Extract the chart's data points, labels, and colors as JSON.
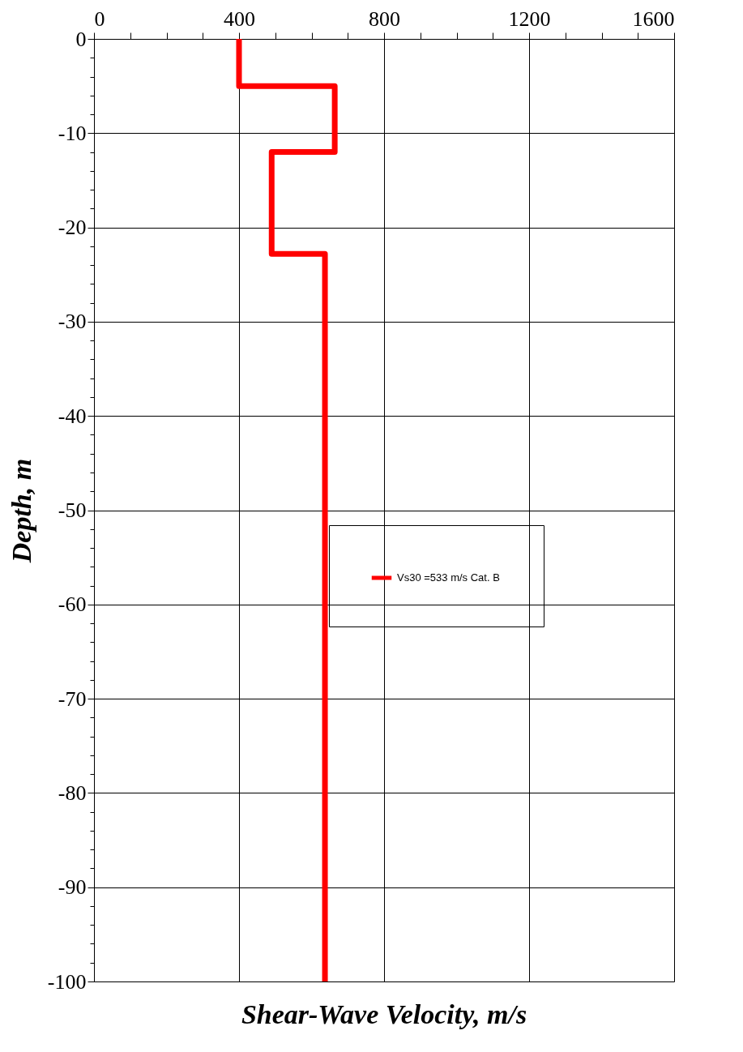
{
  "chart_data": {
    "type": "line",
    "xlabel": "Shear-Wave Velocity, m/s",
    "ylabel": "Depth, m",
    "x": [
      400,
      400,
      664,
      664,
      490,
      490,
      637,
      637
    ],
    "series": [
      {
        "name": "Vs30 =533  m/s Cat. B",
        "color": "#ff0000",
        "values": [
          0,
          -5,
          -5,
          -12,
          -12,
          -22.8,
          -22.8,
          -100
        ]
      }
    ],
    "xlim": [
      0,
      1600
    ],
    "xticks": [
      0,
      {
        "value": 100,
        "label": null
      },
      {
        "value": 200,
        "label": null
      },
      {
        "value": 300,
        "label": null
      },
      400,
      {
        "value": 500,
        "label": null
      },
      {
        "value": 600,
        "label": null
      },
      {
        "value": 700,
        "label": null
      },
      800,
      {
        "value": 900,
        "label": null
      },
      {
        "value": 1000,
        "label": null
      },
      {
        "value": 1100,
        "label": null
      },
      1200,
      {
        "value": 1300,
        "label": null
      },
      {
        "value": 1400,
        "label": null
      },
      {
        "value": 1500,
        "label": null
      },
      1600
    ],
    "ylim": [
      -100,
      0
    ],
    "yticks": [
      0,
      {
        "value": -2,
        "label": null
      },
      {
        "value": -4,
        "label": null
      },
      {
        "value": -6,
        "label": null
      },
      {
        "value": -8,
        "label": null
      },
      -10,
      {
        "value": -12,
        "label": null
      },
      {
        "value": -14,
        "label": null
      },
      {
        "value": -16,
        "label": null
      },
      {
        "value": -18,
        "label": null
      },
      -20,
      {
        "value": -22,
        "label": null
      },
      {
        "value": -24,
        "label": null
      },
      {
        "value": -26,
        "label": null
      },
      {
        "value": -28,
        "label": null
      },
      -30,
      {
        "value": -32,
        "label": null
      },
      {
        "value": -34,
        "label": null
      },
      {
        "value": -36,
        "label": null
      },
      {
        "value": -38,
        "label": null
      },
      -40,
      {
        "value": -42,
        "label": null
      },
      {
        "value": -44,
        "label": null
      },
      {
        "value": -46,
        "label": null
      },
      {
        "value": -48,
        "label": null
      },
      -50,
      {
        "value": -52,
        "label": null
      },
      {
        "value": -54,
        "label": null
      },
      {
        "value": -56,
        "label": null
      },
      {
        "value": -58,
        "label": null
      },
      -60,
      {
        "value": -62,
        "label": null
      },
      {
        "value": -64,
        "label": null
      },
      {
        "value": -66,
        "label": null
      },
      {
        "value": -68,
        "label": null
      },
      -70,
      {
        "value": -72,
        "label": null
      },
      {
        "value": -74,
        "label": null
      },
      {
        "value": -76,
        "label": null
      },
      {
        "value": -78,
        "label": null
      },
      -80,
      {
        "value": -82,
        "label": null
      },
      {
        "value": -84,
        "label": null
      },
      {
        "value": -86,
        "label": null
      },
      {
        "value": -88,
        "label": null
      },
      -90,
      {
        "value": -92,
        "label": null
      },
      {
        "value": -94,
        "label": null
      },
      {
        "value": -96,
        "label": null
      },
      {
        "value": -98,
        "label": null
      },
      -100
    ],
    "grid": true,
    "legend": "right",
    "marker": "none",
    "line_style": "solid"
  }
}
